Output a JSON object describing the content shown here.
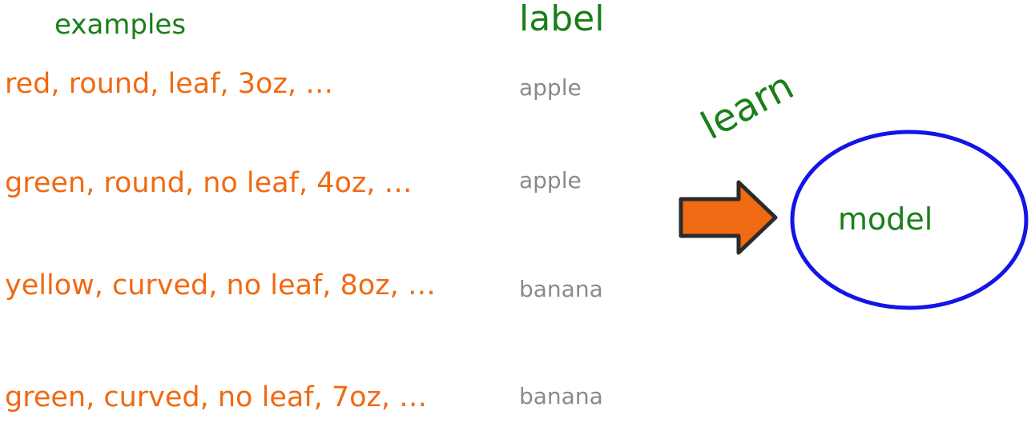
{
  "headers": {
    "examples": "examples",
    "label": "label"
  },
  "rows": [
    {
      "features": "red, round, leaf, 3oz, …",
      "label": "apple"
    },
    {
      "features": "green, round, no leaf, 4oz, …",
      "label": "apple"
    },
    {
      "features": "yellow, curved, no leaf, 8oz, …",
      "label": "banana"
    },
    {
      "features": "green, curved, no leaf, 7oz, …",
      "label": "banana"
    }
  ],
  "learn_text": "learn",
  "model_text": "model",
  "colors": {
    "header_green": "#1a7f1a",
    "example_orange": "#f06a13",
    "label_gray": "#8a8a8a",
    "arrow_fill": "#f06a13",
    "model_outline": "#1414e6"
  },
  "icons": {
    "arrow": "right-arrow-icon"
  }
}
